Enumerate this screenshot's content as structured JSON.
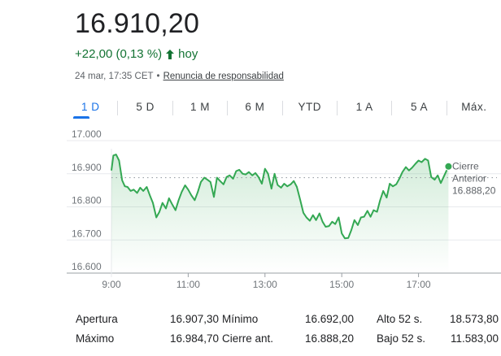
{
  "quote": {
    "price": "16.910,20",
    "change": "+22,00 (0,13 %)",
    "period": "hoy",
    "timestamp": "24 mar, 17:35 CET",
    "separator": "•",
    "disclaimer": "Renuncia de responsabilidad",
    "positive_color": "#137333"
  },
  "tabs": [
    {
      "label": "1 D",
      "active": true
    },
    {
      "label": "5 D",
      "active": false
    },
    {
      "label": "1 M",
      "active": false
    },
    {
      "label": "6 M",
      "active": false
    },
    {
      "label": "YTD",
      "active": false
    },
    {
      "label": "1 A",
      "active": false
    },
    {
      "label": "5 A",
      "active": false
    },
    {
      "label": "Máx.",
      "active": false
    }
  ],
  "chart_data": {
    "type": "area",
    "y_ticks": [
      "17.000",
      "16.900",
      "16.800",
      "16.700",
      "16.600"
    ],
    "y_values": [
      17000,
      16900,
      16800,
      16700,
      16600
    ],
    "ylim": [
      16600,
      17000
    ],
    "x_ticks": [
      "9:00",
      "11:00",
      "13:00",
      "15:00",
      "17:00"
    ],
    "x_hours": [
      9,
      11,
      13,
      15,
      17
    ],
    "xlim": [
      9,
      19
    ],
    "line_color": "#34a853",
    "previous_close": {
      "label_line1": "Cierre",
      "label_line2": "Anterior",
      "value_label": "16.888,20",
      "value": 16888.2
    },
    "series": [
      {
        "x": [
          9.0,
          9.05,
          9.12,
          9.2,
          9.28,
          9.35,
          9.42,
          9.5,
          9.58,
          9.67,
          9.75,
          9.83,
          9.92,
          10.0,
          10.08,
          10.17,
          10.25,
          10.33,
          10.42,
          10.5,
          10.58,
          10.67,
          10.75,
          10.83,
          10.92,
          11.0,
          11.08,
          11.17,
          11.25,
          11.33,
          11.42,
          11.5,
          11.58,
          11.67,
          11.75,
          11.83,
          11.92,
          12.0,
          12.08,
          12.17,
          12.25,
          12.33,
          12.42,
          12.5,
          12.58,
          12.67,
          12.75,
          12.83,
          12.92,
          13.0,
          13.08,
          13.17,
          13.25,
          13.33,
          13.42,
          13.5,
          13.58,
          13.67,
          13.75,
          13.83,
          13.92,
          14.0,
          14.08,
          14.17,
          14.25,
          14.33,
          14.42,
          14.5,
          14.58,
          14.67,
          14.75,
          14.83,
          14.92,
          15.0,
          15.08,
          15.17,
          15.25,
          15.33,
          15.42,
          15.5,
          15.58,
          15.67,
          15.75,
          15.83,
          15.92,
          16.0,
          16.08,
          16.17,
          16.25,
          16.33,
          16.42,
          16.5,
          16.58,
          16.67,
          16.75,
          16.83,
          16.92,
          17.0,
          17.08,
          17.17,
          17.25,
          17.33,
          17.42,
          17.5,
          17.58
        ],
        "values": [
          16910,
          16955,
          16958,
          16940,
          16880,
          16862,
          16860,
          16848,
          16852,
          16842,
          16858,
          16848,
          16860,
          16835,
          16812,
          16768,
          16785,
          16812,
          16795,
          16826,
          16808,
          16790,
          16820,
          16845,
          16865,
          16852,
          16835,
          16820,
          16845,
          16875,
          16888,
          16882,
          16875,
          16830,
          16888,
          16878,
          16868,
          16890,
          16895,
          16885,
          16908,
          16912,
          16900,
          16898,
          16905,
          16895,
          16902,
          16890,
          16870,
          16915,
          16900,
          16855,
          16900,
          16866,
          16858,
          16870,
          16862,
          16868,
          16878,
          16860,
          16820,
          16782,
          16768,
          16758,
          16775,
          16760,
          16780,
          16755,
          16740,
          16742,
          16755,
          16748,
          16768,
          16720,
          16705,
          16706,
          16730,
          16760,
          16745,
          16768,
          16770,
          16788,
          16770,
          16790,
          16785,
          16820,
          16848,
          16828,
          16870,
          16862,
          16868,
          16885,
          16905,
          16920,
          16910,
          16918,
          16930,
          16940,
          16935,
          16945,
          16940,
          16890,
          16882,
          16895,
          16872
        ]
      }
    ],
    "last_point": {
      "x": 17.78,
      "value": 16922
    }
  },
  "stats": [
    [
      {
        "label": "Apertura",
        "value": "16.907,30"
      },
      {
        "label": "Mínimo",
        "value": "16.692,00"
      },
      {
        "label": "Alto 52 s.",
        "value": "18.573,80"
      }
    ],
    [
      {
        "label": "Máximo",
        "value": "16.984,70"
      },
      {
        "label": "Cierre ant.",
        "value": "16.888,20"
      },
      {
        "label": "Bajo 52 s.",
        "value": "11.583,00"
      }
    ]
  ]
}
